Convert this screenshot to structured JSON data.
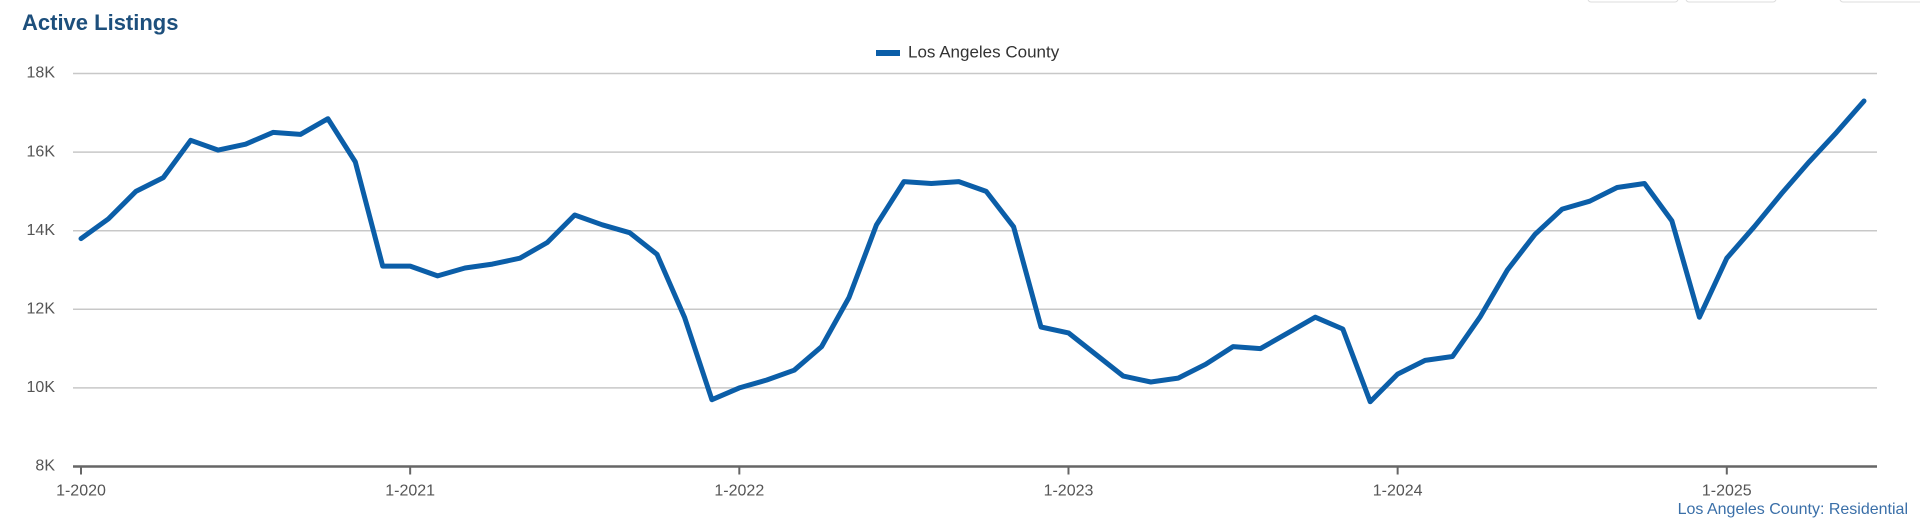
{
  "chart_data": {
    "type": "line",
    "title": "Active Listings",
    "source": "Los Angeles County: Residential",
    "categories": [
      "1-2020",
      null,
      null,
      null,
      null,
      null,
      null,
      null,
      null,
      null,
      null,
      null,
      "1-2021",
      null,
      null,
      null,
      null,
      null,
      null,
      null,
      null,
      null,
      null,
      null,
      "1-2022",
      null,
      null,
      null,
      null,
      null,
      null,
      null,
      null,
      null,
      null,
      null,
      "1-2023",
      null,
      null,
      null,
      null,
      null,
      null,
      null,
      null,
      null,
      null,
      null,
      "1-2024",
      null,
      null,
      null,
      null,
      null,
      null,
      null,
      null,
      null,
      null,
      null,
      "1-2025",
      null,
      null,
      null,
      null,
      null
    ],
    "series": [
      {
        "name": "Los Angeles County",
        "color": "#0b5ea8",
        "values": [
          13800,
          14300,
          15000,
          15350,
          16300,
          16050,
          16200,
          16500,
          16450,
          16850,
          15750,
          13100,
          13100,
          12850,
          13050,
          13150,
          13300,
          13700,
          14400,
          14150,
          13950,
          13400,
          11800,
          9700,
          10000,
          10200,
          10450,
          11050,
          12300,
          14150,
          15250,
          15200,
          15250,
          15000,
          14100,
          11550,
          11400,
          10850,
          10300,
          10150,
          10250,
          10600,
          11050,
          11000,
          11400,
          11800,
          11500,
          9650,
          10350,
          10700,
          10800,
          11800,
          13000,
          13900,
          14550,
          14750,
          15100,
          15200,
          14250,
          11800,
          13300,
          14100,
          14950,
          15750,
          16500,
          17300
        ]
      }
    ],
    "ylim": [
      8000,
      18000
    ],
    "yticks": [
      {
        "value": 8000,
        "label": "8K"
      },
      {
        "value": 10000,
        "label": "10K"
      },
      {
        "value": 12000,
        "label": "12K"
      },
      {
        "value": 14000,
        "label": "14K"
      },
      {
        "value": 16000,
        "label": "16K"
      },
      {
        "value": 18000,
        "label": "18K"
      }
    ],
    "grid": true,
    "legend": "top"
  }
}
